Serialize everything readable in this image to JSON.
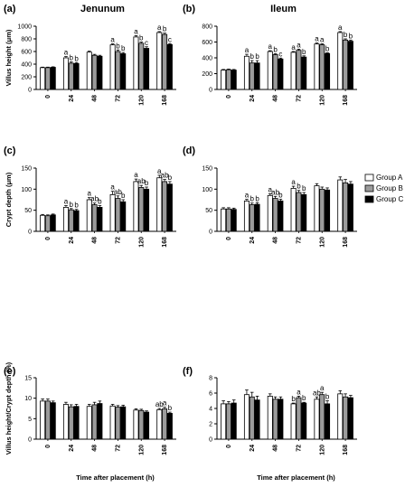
{
  "chart_data": [
    {
      "panel": "(a)",
      "type": "bar",
      "title": "Jenunum",
      "ylabel": "Villus height (μm)",
      "xlabel": "",
      "ylim": [
        0,
        1000
      ],
      "yticks": [
        0,
        200,
        400,
        600,
        800,
        1000
      ],
      "categories": [
        "0",
        "24",
        "48",
        "72",
        "120",
        "168"
      ],
      "series": [
        {
          "name": "Group A",
          "values": [
            345,
            500,
            590,
            705,
            830,
            900
          ],
          "errors": [
            8,
            20,
            15,
            15,
            20,
            15
          ]
        },
        {
          "name": "Group B",
          "values": [
            345,
            415,
            540,
            600,
            730,
            870
          ],
          "errors": [
            8,
            20,
            15,
            25,
            20,
            20
          ]
        },
        {
          "name": "Group C",
          "values": [
            350,
            410,
            525,
            565,
            650,
            710
          ],
          "errors": [
            8,
            15,
            15,
            20,
            25,
            15
          ]
        }
      ],
      "labels": [
        [
          "",
          "",
          ""
        ],
        [
          "a",
          "b",
          "b"
        ],
        [
          "",
          "",
          ""
        ],
        [
          "a",
          "b",
          "b"
        ],
        [
          "a",
          "b",
          "c"
        ],
        [
          "a",
          "b",
          "c"
        ]
      ]
    },
    {
      "panel": "(b)",
      "type": "bar",
      "title": "Ileum",
      "ylabel": "",
      "xlabel": "",
      "ylim": [
        0,
        800
      ],
      "yticks": [
        0,
        200,
        400,
        600,
        800
      ],
      "categories": [
        "0",
        "24",
        "48",
        "72",
        "120",
        "168"
      ],
      "series": [
        {
          "name": "Group A",
          "values": [
            245,
            420,
            480,
            470,
            575,
            720
          ],
          "errors": [
            8,
            25,
            10,
            10,
            12,
            12
          ]
        },
        {
          "name": "Group B",
          "values": [
            250,
            335,
            440,
            495,
            565,
            625
          ],
          "errors": [
            8,
            30,
            12,
            15,
            12,
            15
          ]
        },
        {
          "name": "Group C",
          "values": [
            245,
            335,
            385,
            410,
            455,
            610
          ],
          "errors": [
            8,
            30,
            12,
            15,
            10,
            15
          ]
        }
      ],
      "labels": [
        [
          "",
          "",
          ""
        ],
        [
          "a",
          "b",
          "b"
        ],
        [
          "a",
          "b",
          "c"
        ],
        [
          "a",
          "a",
          "b"
        ],
        [
          "a",
          "a",
          "b"
        ],
        [
          "a",
          "b",
          "b"
        ]
      ]
    },
    {
      "panel": "(c)",
      "type": "bar",
      "title": "",
      "ylabel": "Crypt depth (μm)",
      "xlabel": "",
      "ylim": [
        0,
        150
      ],
      "yticks": [
        0,
        50,
        100,
        150
      ],
      "categories": [
        "0",
        "24",
        "48",
        "72",
        "120",
        "168"
      ],
      "series": [
        {
          "name": "Group A",
          "values": [
            38,
            57,
            75,
            87,
            118,
            127
          ],
          "errors": [
            2,
            4,
            5,
            8,
            6,
            6
          ]
        },
        {
          "name": "Group B",
          "values": [
            37,
            51,
            63,
            78,
            104,
            118
          ],
          "errors": [
            2,
            3,
            4,
            6,
            5,
            5
          ]
        },
        {
          "name": "Group C",
          "values": [
            39,
            49,
            57,
            70,
            100,
            112
          ],
          "errors": [
            2,
            3,
            4,
            5,
            5,
            6
          ]
        }
      ],
      "labels": [
        [
          "",
          "",
          ""
        ],
        [
          "a",
          "b",
          "b"
        ],
        [
          "a",
          "ab",
          "b"
        ],
        [
          "a",
          "ab",
          "b"
        ],
        [
          "a",
          "ab",
          "b"
        ],
        [
          "a",
          "ab",
          "b"
        ]
      ]
    },
    {
      "panel": "(d)",
      "type": "bar",
      "title": "",
      "ylabel": "",
      "xlabel": "",
      "ylim": [
        0,
        150
      ],
      "yticks": [
        0,
        50,
        100,
        150
      ],
      "categories": [
        "0",
        "24",
        "48",
        "72",
        "120",
        "168"
      ],
      "series": [
        {
          "name": "Group A",
          "values": [
            53,
            72,
            85,
            102,
            108,
            122
          ],
          "errors": [
            3,
            4,
            4,
            5,
            5,
            7
          ]
        },
        {
          "name": "Group B",
          "values": [
            53,
            63,
            78,
            92,
            100,
            115
          ],
          "errors": [
            3,
            4,
            5,
            5,
            5,
            8
          ]
        },
        {
          "name": "Group C",
          "values": [
            52,
            64,
            72,
            87,
            98,
            112
          ],
          "errors": [
            3,
            4,
            4,
            5,
            5,
            6
          ]
        }
      ],
      "labels": [
        [
          "",
          "",
          ""
        ],
        [
          "a",
          "b",
          "b"
        ],
        [
          "a",
          "ab",
          "b"
        ],
        [
          "a",
          "b",
          "b"
        ],
        [
          "",
          "",
          ""
        ],
        [
          "",
          "",
          ""
        ]
      ]
    },
    {
      "panel": "(e)",
      "type": "bar",
      "title": "",
      "ylabel": "Villus height/Crypt depth (%)",
      "xlabel": "Time after placement (h)",
      "ylim": [
        0,
        15
      ],
      "yticks": [
        0,
        5,
        10,
        15
      ],
      "categories": [
        "0",
        "24",
        "48",
        "72",
        "120",
        "168"
      ],
      "series": [
        {
          "name": "Group A",
          "values": [
            9.3,
            8.5,
            8.0,
            8.1,
            7.1,
            7.2
          ],
          "errors": [
            0.5,
            0.5,
            0.5,
            0.4,
            0.3,
            0.3
          ]
        },
        {
          "name": "Group B",
          "values": [
            9.3,
            7.9,
            8.4,
            7.8,
            7.0,
            7.4
          ],
          "errors": [
            0.5,
            0.5,
            0.6,
            0.4,
            0.3,
            0.4
          ]
        },
        {
          "name": "Group C",
          "values": [
            8.9,
            8.0,
            8.7,
            7.9,
            6.6,
            6.3
          ],
          "errors": [
            0.4,
            0.5,
            0.6,
            0.4,
            0.3,
            0.3
          ]
        }
      ],
      "labels": [
        [
          "",
          "",
          ""
        ],
        [
          "",
          "",
          ""
        ],
        [
          "",
          "",
          ""
        ],
        [
          "",
          "",
          ""
        ],
        [
          "",
          "",
          ""
        ],
        [
          "ab",
          "a",
          "b"
        ]
      ]
    },
    {
      "panel": "(f)",
      "type": "bar",
      "title": "",
      "ylabel": "",
      "xlabel": "Time after placement (h)",
      "ylim": [
        0,
        8
      ],
      "yticks": [
        0,
        2,
        4,
        6,
        8
      ],
      "categories": [
        "0",
        "24",
        "48",
        "72",
        "120",
        "168"
      ],
      "series": [
        {
          "name": "Group A",
          "values": [
            4.6,
            5.8,
            5.6,
            4.6,
            5.2,
            5.9
          ],
          "errors": [
            0.4,
            0.6,
            0.3,
            0.1,
            0.3,
            0.4
          ]
        },
        {
          "name": "Group B",
          "values": [
            4.6,
            5.5,
            5.2,
            5.4,
            5.8,
            5.5
          ],
          "errors": [
            0.3,
            0.6,
            0.3,
            0.2,
            0.3,
            0.4
          ]
        },
        {
          "name": "Group C",
          "values": [
            4.7,
            5.1,
            5.2,
            4.7,
            4.6,
            5.4
          ],
          "errors": [
            0.4,
            0.5,
            0.3,
            0.1,
            0.4,
            0.3
          ]
        }
      ],
      "labels": [
        [
          "",
          "",
          ""
        ],
        [
          "",
          "",
          ""
        ],
        [
          "",
          "",
          ""
        ],
        [
          "b",
          "a",
          "b"
        ],
        [
          "ab",
          "a",
          "b"
        ],
        [
          "",
          "",
          ""
        ]
      ]
    }
  ],
  "legend": {
    "placement": "right of panel (d)",
    "items": [
      {
        "name": "Group A",
        "color": "#ffffff"
      },
      {
        "name": "Group B",
        "color": "#9b9b9b"
      },
      {
        "name": "Group C",
        "color": "#000000"
      }
    ]
  },
  "colors": {
    "group_a": "#ffffff",
    "group_b": "#9b9b9b",
    "group_c": "#000000",
    "axis": "#000000"
  }
}
